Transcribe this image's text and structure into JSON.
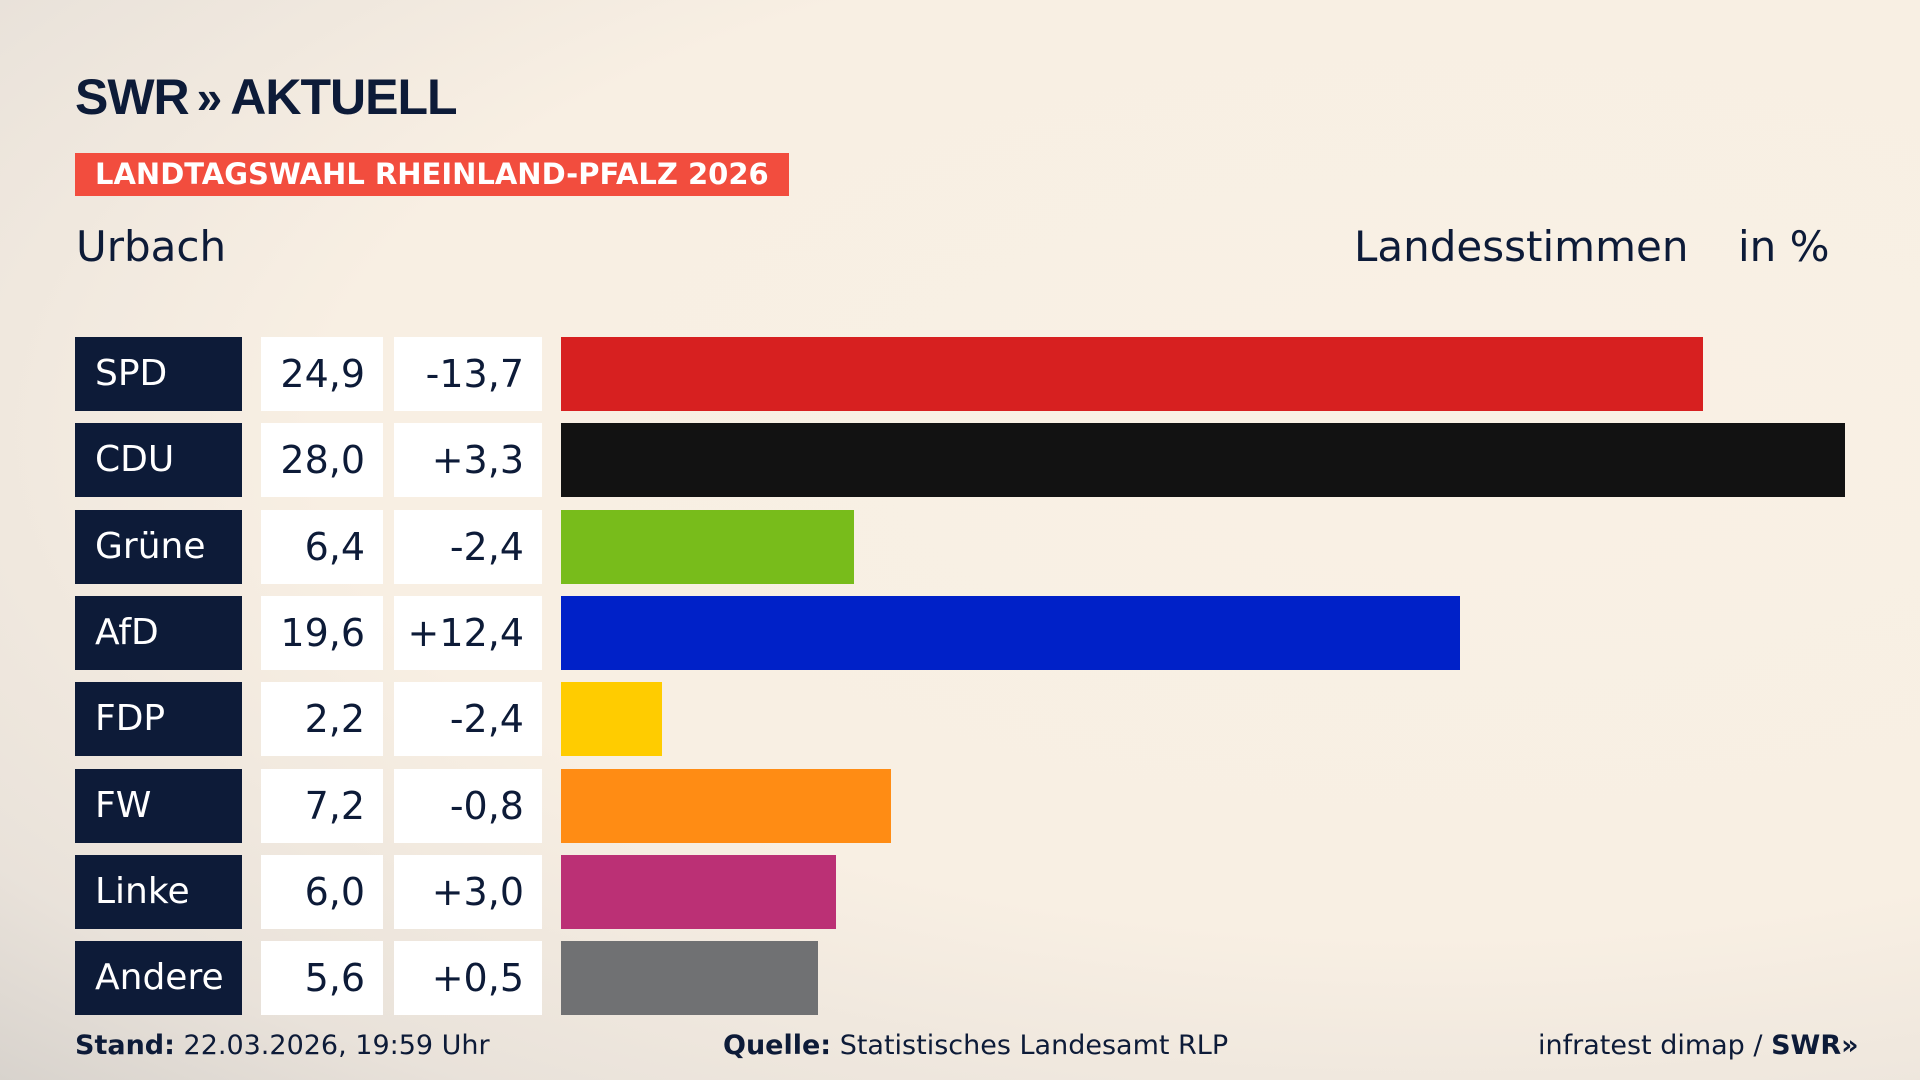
{
  "logo": {
    "text": "SWR",
    "chevrons": "»",
    "suffix": "AKTUELL"
  },
  "banner": "LANDTAGSWAHL RHEINLAND-PFALZ 2026",
  "region": "Urbach",
  "header": {
    "measure": "Landesstimmen",
    "unit": "in %"
  },
  "chart_data": {
    "type": "bar",
    "orientation": "horizontal",
    "categories": [
      "SPD",
      "CDU",
      "Grüne",
      "AfD",
      "FDP",
      "FW",
      "Linke",
      "Andere"
    ],
    "values": [
      24.9,
      28.0,
      6.4,
      19.6,
      2.2,
      7.2,
      6.0,
      5.6
    ],
    "value_labels": [
      "24,9",
      "28,0",
      "6,4",
      "19,6",
      "2,2",
      "7,2",
      "6,0",
      "5,6"
    ],
    "changes": [
      -13.7,
      3.3,
      -2.4,
      12.4,
      -2.4,
      -0.8,
      3.0,
      0.5
    ],
    "change_labels": [
      "-13,7",
      "+3,3",
      "-2,4",
      "+12,4",
      "-2,4",
      "-0,8",
      "+3,0",
      "+0,5"
    ],
    "colors": [
      "#d72020",
      "#121212",
      "#78bc1b",
      "#0021c8",
      "#ffcc00",
      "#ff8c14",
      "#bb3075",
      "#707173"
    ],
    "xlim": [
      0,
      28.0
    ],
    "grid": false
  },
  "footer": {
    "stand_label": "Stand:",
    "stand_value": "22.03.2026, 19:59 Uhr",
    "source_label": "Quelle:",
    "source_value": "Statistisches Landesamt RLP",
    "credit": "infratest dimap /",
    "credit_logo": "SWR»"
  }
}
